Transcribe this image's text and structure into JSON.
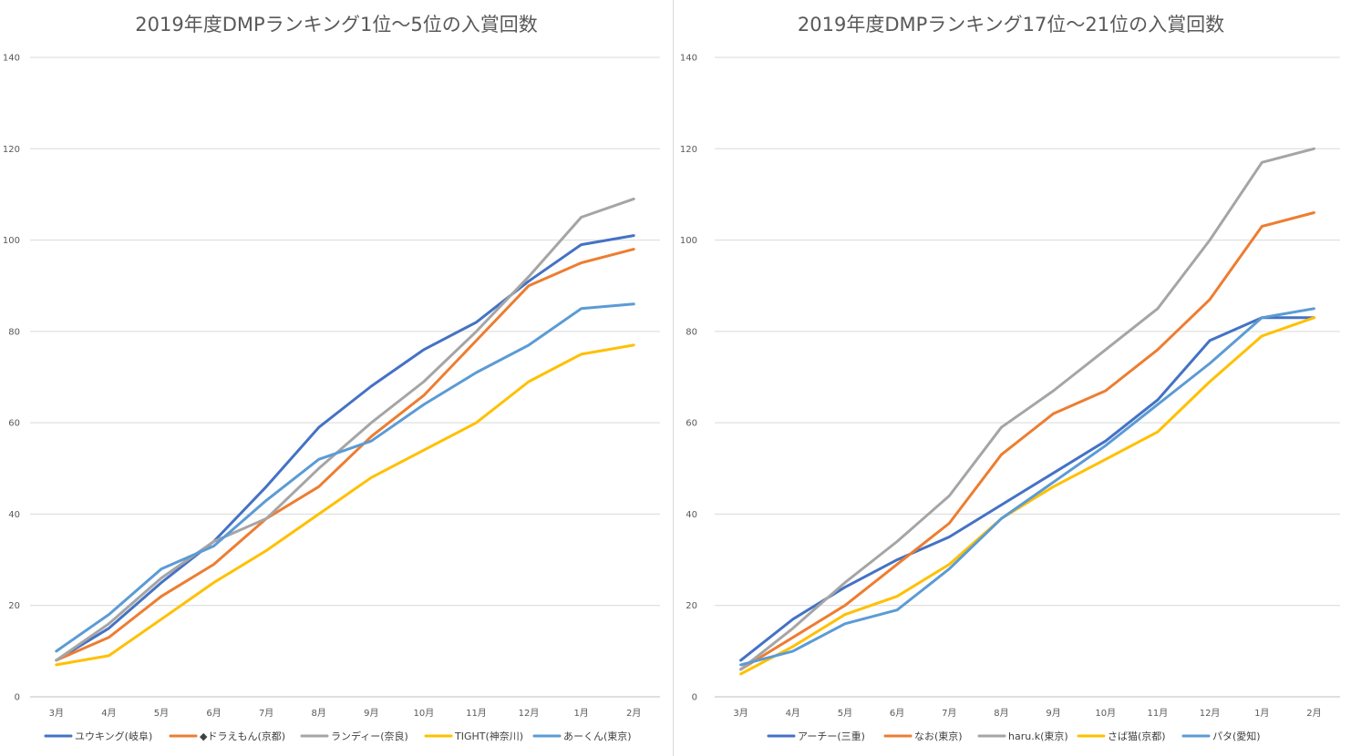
{
  "chart_data": [
    {
      "type": "line",
      "title": "2019年度DMPランキング1位〜5位の入賞回数",
      "categories": [
        "3月",
        "4月",
        "5月",
        "6月",
        "7月",
        "8月",
        "9月",
        "10月",
        "11月",
        "12月",
        "1月",
        "2月"
      ],
      "ylim": [
        0,
        140
      ],
      "yticks": [
        0,
        20,
        40,
        60,
        80,
        100,
        120,
        140
      ],
      "grid": true,
      "legend_position": "bottom",
      "series": [
        {
          "name": "ユウキング(岐阜)",
          "color": "#4472C4",
          "values": [
            8,
            15,
            25,
            34,
            46,
            59,
            68,
            76,
            82,
            91,
            99,
            101
          ]
        },
        {
          "name": "◆ドラえもん(京都)",
          "color": "#ED7D31",
          "values": [
            8,
            13,
            22,
            29,
            39,
            46,
            57,
            66,
            78,
            90,
            95,
            98
          ]
        },
        {
          "name": "ランディー(奈良)",
          "color": "#A5A5A5",
          "values": [
            8,
            16,
            26,
            34,
            39,
            50,
            60,
            69,
            80,
            92,
            105,
            109
          ]
        },
        {
          "name": "TIGHT(神奈川)",
          "color": "#FFC000",
          "values": [
            7,
            9,
            17,
            25,
            32,
            40,
            48,
            54,
            60,
            69,
            75,
            77
          ]
        },
        {
          "name": "あーくん(東京)",
          "color": "#5B9BD5",
          "values": [
            10,
            18,
            28,
            33,
            43,
            52,
            56,
            64,
            71,
            77,
            85,
            86
          ]
        }
      ]
    },
    {
      "type": "line",
      "title": "2019年度DMPランキング17位〜21位の入賞回数",
      "categories": [
        "3月",
        "4月",
        "5月",
        "6月",
        "7月",
        "8月",
        "9月",
        "10月",
        "11月",
        "12月",
        "1月",
        "2月"
      ],
      "ylim": [
        0,
        140
      ],
      "yticks": [
        0,
        20,
        40,
        60,
        80,
        100,
        120,
        140
      ],
      "grid": true,
      "legend_position": "bottom",
      "series": [
        {
          "name": "アーチー(三重)",
          "color": "#4472C4",
          "values": [
            8,
            17,
            24,
            30,
            35,
            42,
            49,
            56,
            65,
            78,
            83,
            83
          ]
        },
        {
          "name": "なお(東京)",
          "color": "#ED7D31",
          "values": [
            6,
            13,
            20,
            29,
            38,
            53,
            62,
            67,
            76,
            87,
            103,
            106
          ]
        },
        {
          "name": "haru.k(東京)",
          "color": "#A5A5A5",
          "values": [
            6,
            15,
            25,
            34,
            44,
            59,
            67,
            76,
            85,
            100,
            117,
            120
          ]
        },
        {
          "name": "さば猫(京都)",
          "color": "#FFC000",
          "values": [
            5,
            11,
            18,
            22,
            29,
            39,
            46,
            52,
            58,
            69,
            79,
            83
          ]
        },
        {
          "name": "パタ(愛知)",
          "color": "#5B9BD5",
          "values": [
            7,
            10,
            16,
            19,
            28,
            39,
            47,
            55,
            64,
            73,
            83,
            85
          ]
        }
      ]
    }
  ]
}
